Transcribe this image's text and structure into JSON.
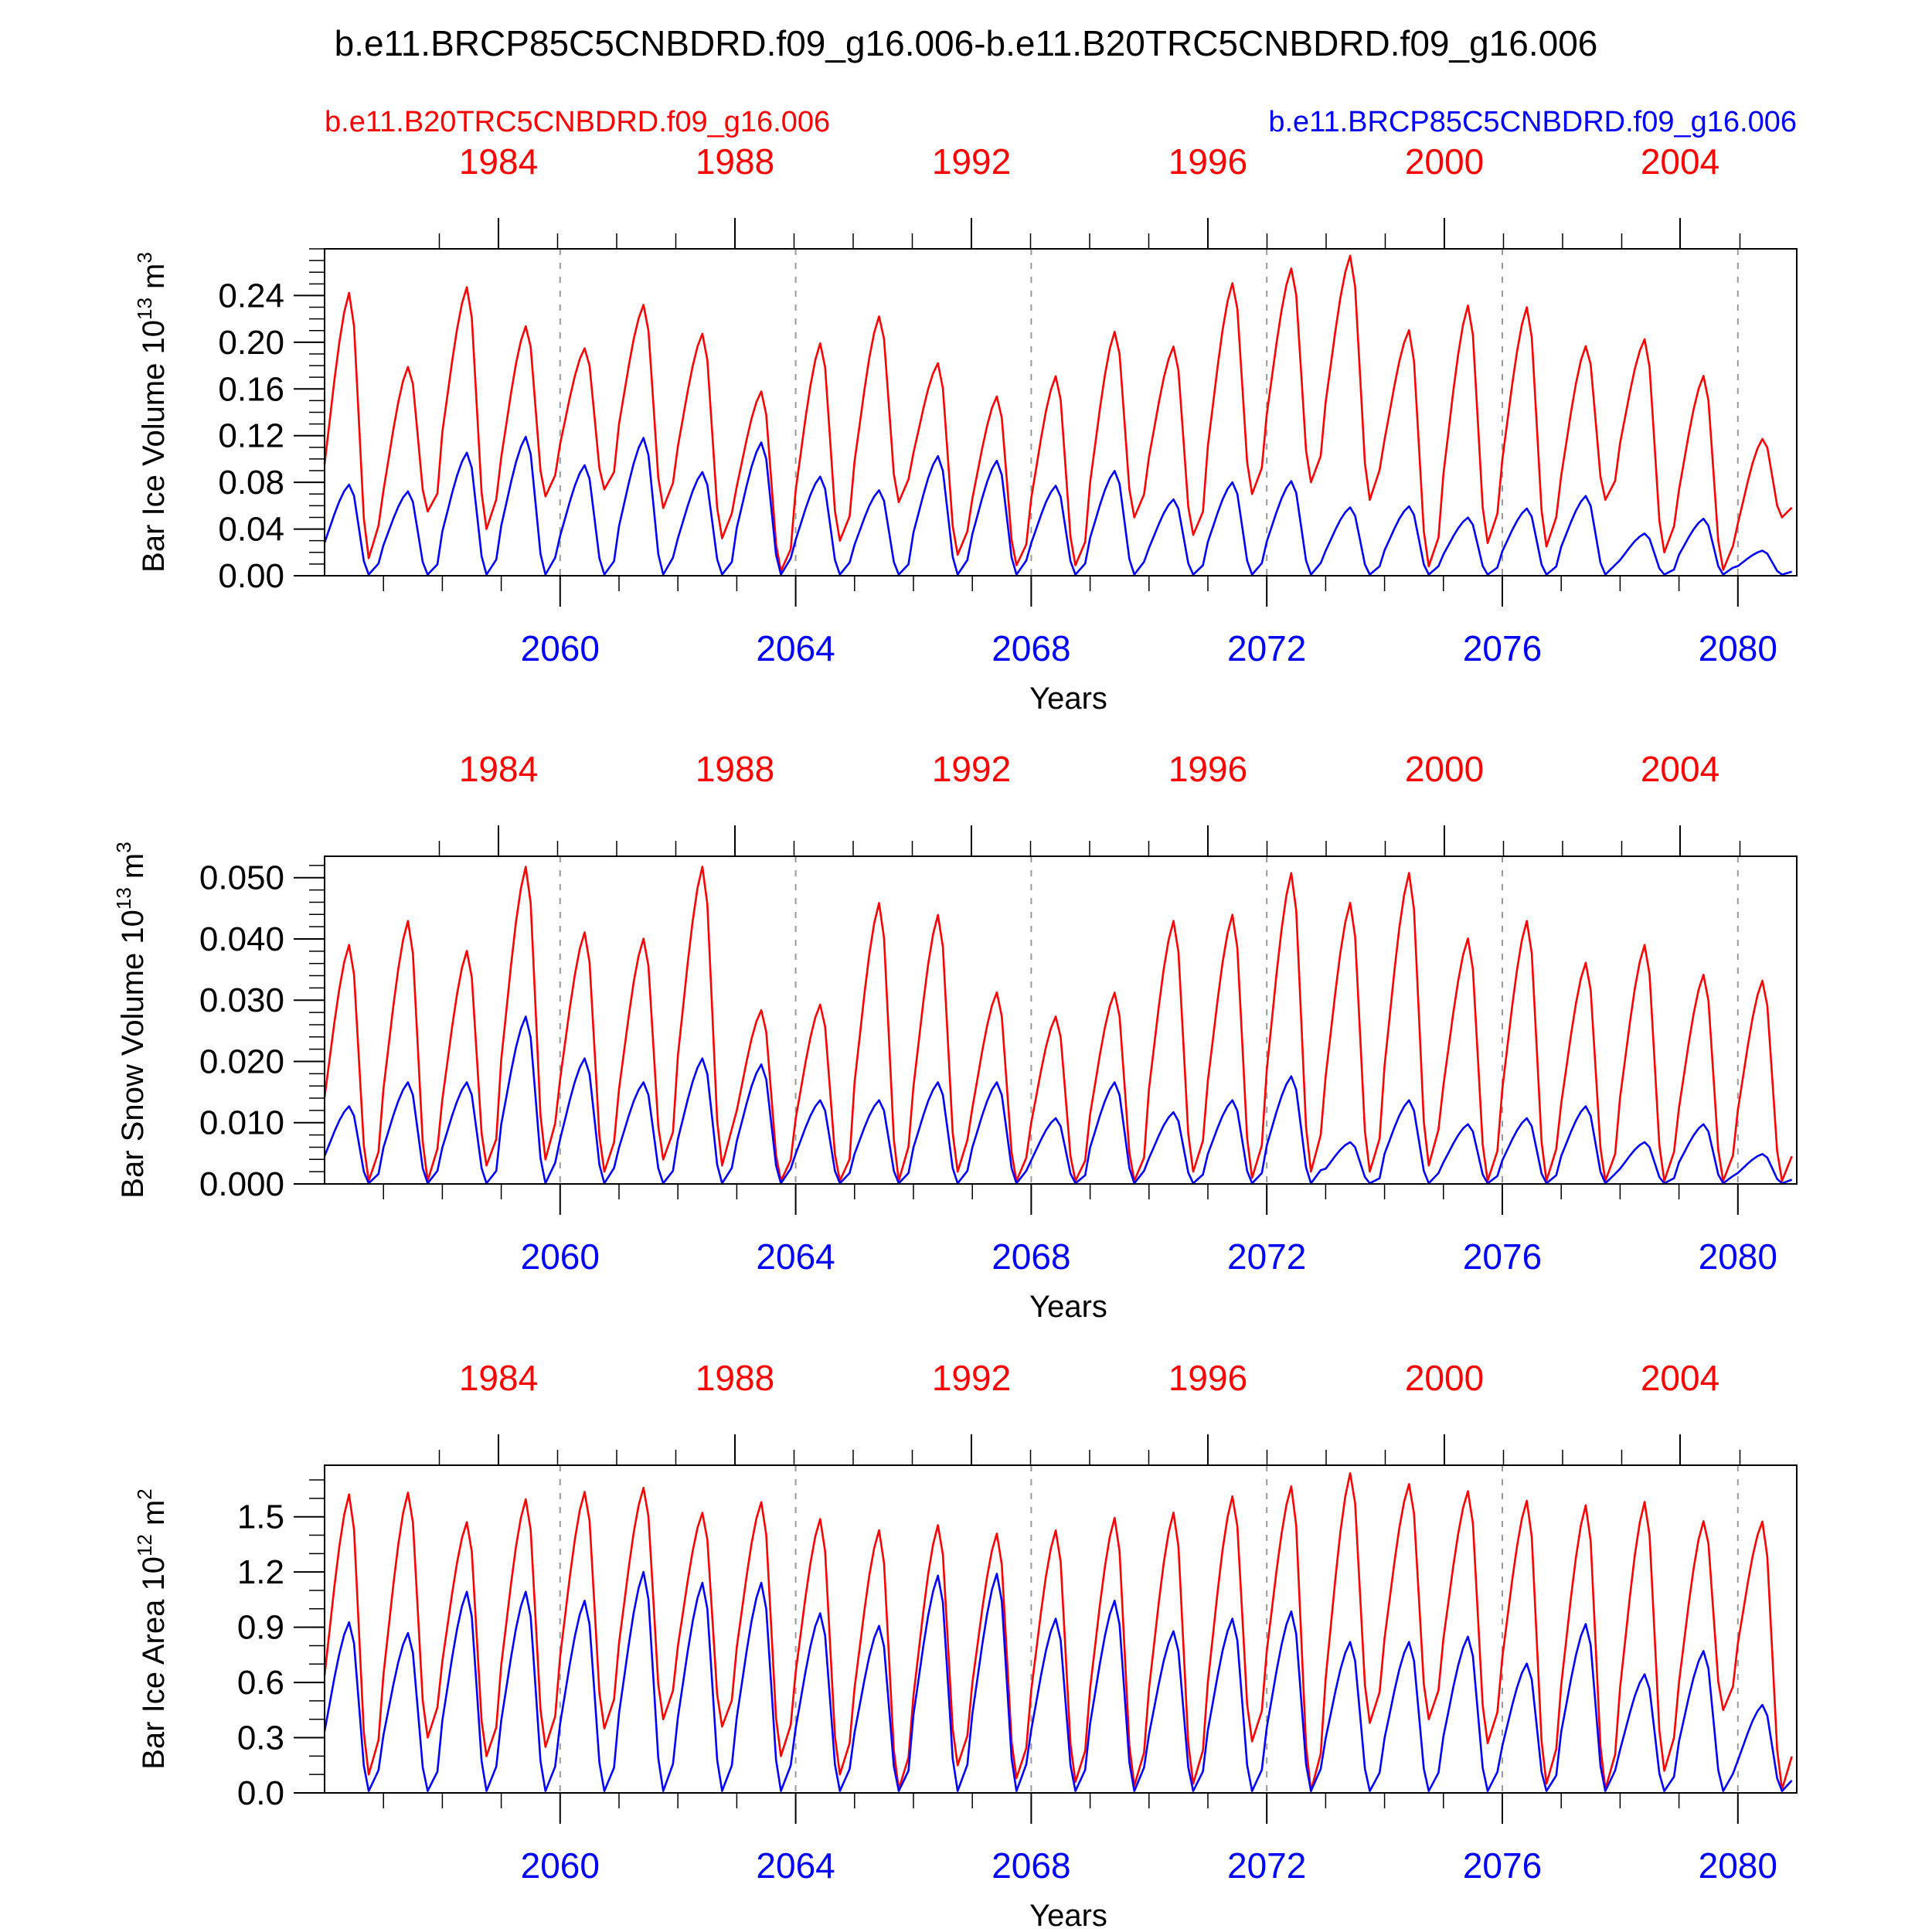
{
  "title": "b.e11.BRCP85C5CNBDRD.f09_g16.006-b.e11.B20TRC5CNBDRD.f09_g16.006",
  "legend": {
    "red_label": "b.e11.B20TRC5CNBDRD.f09_g16.006",
    "blue_label": "b.e11.BRCP85C5CNBDRD.f09_g16.006"
  },
  "colors": {
    "red": "#ff0000",
    "blue": "#0000ff",
    "frame": "#000000",
    "grid": "#999999"
  },
  "chart_data": [
    {
      "type": "line",
      "ylabel": "Bar Ice Volume 10",
      "ylabel_exp": "13",
      "ylabel_unit": " m",
      "ylabel_unit_exp": "3",
      "xlabel": "Years",
      "xlim": [
        2056.0,
        2081.0
      ],
      "ylim": [
        0.0,
        0.28
      ],
      "yticks": [
        0.0,
        0.04,
        0.08,
        0.12,
        0.16,
        0.2,
        0.24
      ],
      "ytick_labels": [
        "0.00",
        "0.04",
        "0.08",
        "0.12",
        "0.16",
        "0.20",
        "0.24"
      ],
      "yminor": 0.01,
      "x_ticks_bottom": [
        2060,
        2064,
        2068,
        2072,
        2076,
        2080
      ],
      "x_ticks_top": [
        1984,
        1988,
        1992,
        1996,
        2000,
        2004
      ],
      "series": [
        {
          "name": "b.e11.B20TRC5CNBDRD.f09_g16.006",
          "color": "#ff0000",
          "peaks": [
            0.248,
            0.183,
            0.252,
            0.218,
            0.198,
            0.236,
            0.211,
            0.161,
            0.204,
            0.227,
            0.185,
            0.157,
            0.175,
            0.214,
            0.2,
            0.256,
            0.268,
            0.279,
            0.214,
            0.237,
            0.235,
            0.201,
            0.206,
            0.175,
            0.12
          ],
          "troughs": [
            0.015,
            0.055,
            0.04,
            0.068,
            0.074,
            0.058,
            0.032,
            0.004,
            0.03,
            0.063,
            0.018,
            0.009,
            0.009,
            0.05,
            0.035,
            0.07,
            0.08,
            0.065,
            0.008,
            0.028,
            0.025,
            0.065,
            0.02,
            0.005,
            0.05
          ]
        },
        {
          "name": "b.e11.BRCP85C5CNBDRD.f09_g16.006",
          "color": "#0000ff",
          "peaks": [
            0.08,
            0.074,
            0.108,
            0.122,
            0.097,
            0.121,
            0.091,
            0.117,
            0.087,
            0.075,
            0.105,
            0.101,
            0.079,
            0.092,
            0.067,
            0.082,
            0.083,
            0.06,
            0.061,
            0.051,
            0.059,
            0.07,
            0.037,
            0.05,
            0.022
          ],
          "troughs": [
            0.001,
            0.001,
            0.001,
            0.001,
            0.001,
            0.001,
            0.001,
            0.001,
            0.001,
            0.001,
            0.001,
            0.001,
            0.001,
            0.001,
            0.001,
            0.001,
            0.001,
            0.001,
            0.001,
            0.001,
            0.001,
            0.001,
            0.001,
            0.001,
            0.001
          ]
        }
      ]
    },
    {
      "type": "line",
      "ylabel": "Bar Snow Volume 10",
      "ylabel_exp": "13",
      "ylabel_unit": " m",
      "ylabel_unit_exp": "3",
      "xlabel": "Years",
      "xlim": [
        2056.0,
        2081.0
      ],
      "ylim": [
        0.0,
        0.0535
      ],
      "yticks": [
        0.0,
        0.01,
        0.02,
        0.03,
        0.04,
        0.05
      ],
      "ytick_labels": [
        "0.000",
        "0.010",
        "0.020",
        "0.030",
        "0.040",
        "0.050"
      ],
      "yminor": 0.002,
      "x_ticks_bottom": [
        2060,
        2064,
        2068,
        2072,
        2076,
        2080
      ],
      "x_ticks_top": [
        1984,
        1988,
        1992,
        1996,
        2000,
        2004
      ],
      "series": [
        {
          "name": "b.e11.B20TRC5CNBDRD.f09_g16.006",
          "color": "#ff0000",
          "peaks": [
            0.04,
            0.044,
            0.039,
            0.053,
            0.042,
            0.041,
            0.053,
            0.029,
            0.03,
            0.047,
            0.045,
            0.032,
            0.028,
            0.032,
            0.044,
            0.045,
            0.052,
            0.047,
            0.052,
            0.041,
            0.044,
            0.037,
            0.04,
            0.035,
            0.034
          ],
          "troughs": [
            0.0005,
            0.0005,
            0.003,
            0.004,
            0.002,
            0.004,
            0.003,
            0.0005,
            0.0005,
            0.0005,
            0.002,
            0.0005,
            0.0005,
            0.0005,
            0.002,
            0.001,
            0.002,
            0.002,
            0.003,
            0.0005,
            0.0005,
            0.0005,
            0.0005,
            0.0005,
            0.0005
          ]
        },
        {
          "name": "b.e11.BRCP85C5CNBDRD.f09_g16.006",
          "color": "#0000ff",
          "peaks": [
            0.013,
            0.017,
            0.017,
            0.028,
            0.021,
            0.017,
            0.021,
            0.02,
            0.014,
            0.014,
            0.017,
            0.017,
            0.011,
            0.017,
            0.012,
            0.014,
            0.018,
            0.007,
            0.014,
            0.01,
            0.011,
            0.013,
            0.007,
            0.01,
            0.005
          ],
          "troughs": [
            0.0001,
            0.0001,
            0.0001,
            0.0001,
            0.0001,
            0.0001,
            0.0001,
            0.0001,
            0.0001,
            0.0001,
            0.0001,
            0.0001,
            0.0001,
            0.0001,
            0.0001,
            0.0001,
            0.0001,
            0.0001,
            0.0001,
            0.0001,
            0.0001,
            0.0001,
            0.0001,
            0.0001,
            0.0001
          ]
        }
      ]
    },
    {
      "type": "line",
      "ylabel": "Bar Ice Area 10",
      "ylabel_exp": "12",
      "ylabel_unit": " m",
      "ylabel_unit_exp": "2",
      "xlabel": "Years",
      "xlim": [
        2056.0,
        2081.0
      ],
      "ylim": [
        0.0,
        1.78
      ],
      "yticks": [
        0.0,
        0.3,
        0.6,
        0.9,
        1.2,
        1.5
      ],
      "ytick_labels": [
        "0.0",
        "0.3",
        "0.6",
        "0.9",
        "1.2",
        "1.5"
      ],
      "yminor": 0.1,
      "x_ticks_bottom": [
        2060,
        2064,
        2068,
        2072,
        2076,
        2080
      ],
      "x_ticks_top": [
        1984,
        1988,
        1992,
        1996,
        2000,
        2004
      ],
      "series": [
        {
          "name": "b.e11.B20TRC5CNBDRD.f09_g16.006",
          "color": "#ff0000",
          "peaks": [
            1.66,
            1.67,
            1.5,
            1.63,
            1.67,
            1.69,
            1.55,
            1.61,
            1.52,
            1.46,
            1.49,
            1.44,
            1.46,
            1.53,
            1.56,
            1.65,
            1.7,
            1.78,
            1.71,
            1.67,
            1.62,
            1.6,
            1.62,
            1.51,
            1.5
          ],
          "troughs": [
            0.1,
            0.3,
            0.2,
            0.25,
            0.35,
            0.4,
            0.36,
            0.2,
            0.1,
            0.02,
            0.15,
            0.08,
            0.06,
            0.04,
            0.05,
            0.28,
            0.01,
            0.38,
            0.4,
            0.27,
            0.05,
            0.02,
            0.12,
            0.45,
            0.02
          ]
        },
        {
          "name": "b.e11.BRCP85C5CNBDRD.f09_g16.006",
          "color": "#0000ff",
          "peaks": [
            0.95,
            0.89,
            1.12,
            1.12,
            1.07,
            1.23,
            1.17,
            1.17,
            1.0,
            0.93,
            1.21,
            1.22,
            0.97,
            1.07,
            0.9,
            0.97,
            1.01,
            0.84,
            0.84,
            0.87,
            0.72,
            0.94,
            0.66,
            0.79,
            0.49
          ],
          "troughs": [
            0.01,
            0.01,
            0.01,
            0.01,
            0.01,
            0.01,
            0.01,
            0.01,
            0.01,
            0.01,
            0.01,
            0.01,
            0.01,
            0.01,
            0.01,
            0.01,
            0.01,
            0.01,
            0.01,
            0.01,
            0.01,
            0.01,
            0.01,
            0.01,
            0.01
          ]
        }
      ]
    }
  ]
}
